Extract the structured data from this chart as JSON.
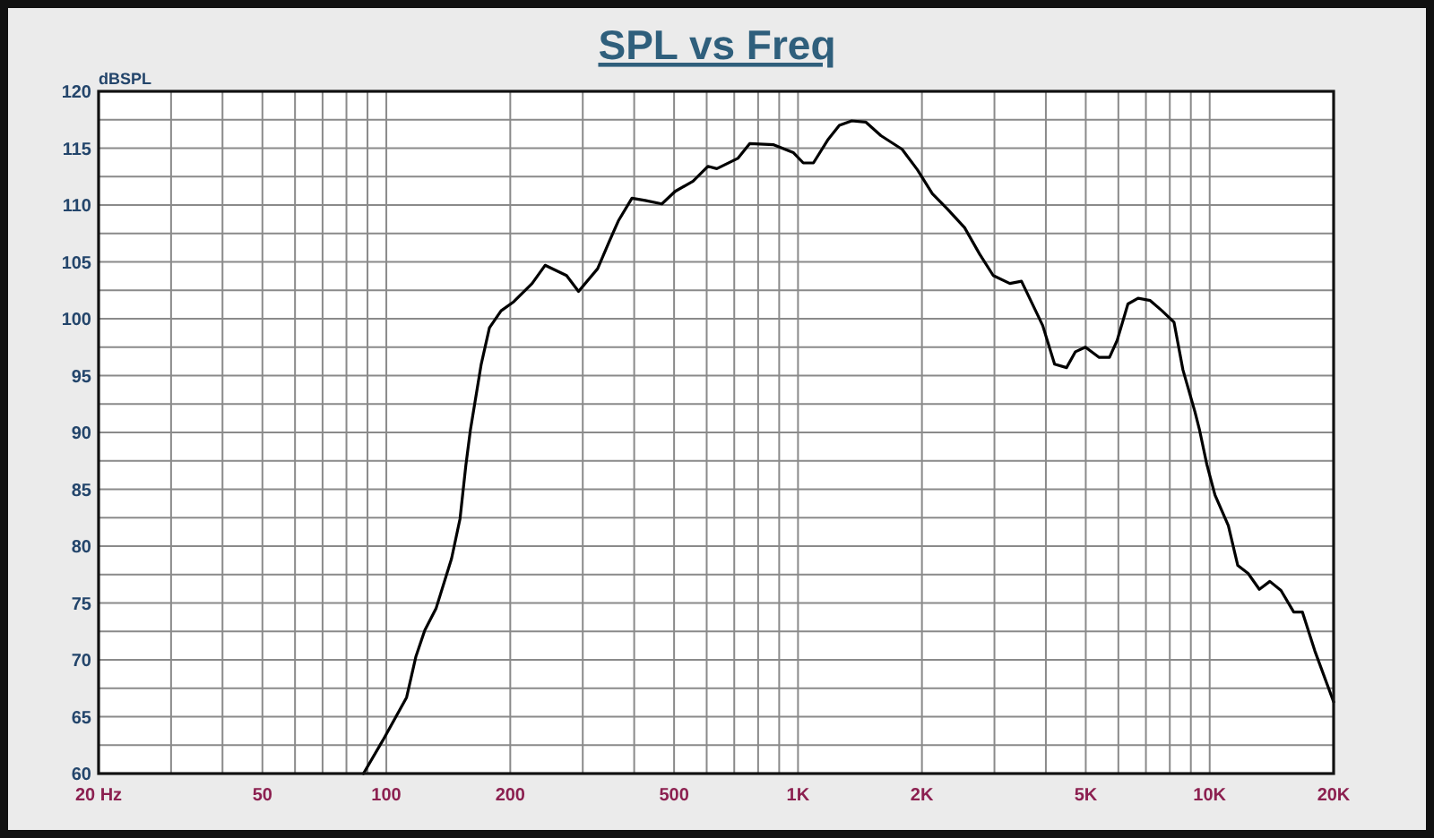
{
  "chart_data": {
    "type": "line",
    "title": "SPL vs Freq",
    "ylabel": "dBSPL",
    "x": [
      88,
      98,
      112,
      118,
      124,
      132,
      144,
      151,
      156,
      160,
      170,
      178,
      190,
      204,
      226,
      243,
      274,
      293,
      326,
      348,
      366,
      395,
      425,
      467,
      503,
      556,
      604,
      635,
      714,
      763,
      873,
      975,
      1030,
      1090,
      1180,
      1260,
      1350,
      1460,
      1590,
      1790,
      1950,
      2120,
      2300,
      2540,
      2760,
      2980,
      3270,
      3490,
      3930,
      4200,
      4490,
      4720,
      4990,
      5390,
      5710,
      5960,
      6330,
      6700,
      7170,
      7660,
      8190,
      8610,
      9210,
      9450,
      9840,
      10300,
      11100,
      11700,
      12400,
      13200,
      14000,
      14900,
      16000,
      16800,
      18000,
      20000
    ],
    "series": [
      {
        "color": "#000000",
        "values": [
          60.0,
          62.9,
          66.7,
          70.3,
          72.6,
          74.5,
          78.9,
          82.4,
          87.1,
          90.2,
          96.0,
          99.2,
          100.7,
          101.5,
          103.1,
          104.7,
          103.8,
          102.4,
          104.4,
          106.8,
          108.6,
          110.6,
          110.4,
          110.1,
          111.2,
          112.1,
          113.4,
          113.2,
          114.1,
          115.4,
          115.3,
          114.6,
          113.7,
          113.7,
          115.7,
          117.0,
          117.4,
          117.3,
          116.1,
          114.9,
          113.1,
          111.0,
          109.7,
          108.0,
          105.7,
          103.8,
          103.1,
          103.3,
          99.4,
          96.0,
          95.7,
          97.1,
          97.5,
          96.6,
          96.6,
          98.1,
          101.3,
          101.8,
          101.6,
          100.7,
          99.7,
          95.5,
          91.8,
          90.2,
          87.2,
          84.5,
          81.8,
          78.3,
          77.6,
          76.2,
          76.9,
          76.1,
          74.2,
          74.2,
          70.8,
          66.3
        ]
      }
    ],
    "xlim": [
      20,
      20000
    ],
    "ylim": [
      60,
      120
    ],
    "xticks": [
      {
        "value": 20,
        "label": "20 Hz"
      },
      {
        "value": 30,
        "label": null
      },
      {
        "value": 40,
        "label": null
      },
      {
        "value": 50,
        "label": "50"
      },
      {
        "value": 60,
        "label": null
      },
      {
        "value": 70,
        "label": null
      },
      {
        "value": 80,
        "label": null
      },
      {
        "value": 90,
        "label": null
      },
      {
        "value": 100,
        "label": "100"
      },
      {
        "value": 200,
        "label": "200"
      },
      {
        "value": 300,
        "label": null
      },
      {
        "value": 400,
        "label": null
      },
      {
        "value": 500,
        "label": "500"
      },
      {
        "value": 600,
        "label": null
      },
      {
        "value": 700,
        "label": null
      },
      {
        "value": 800,
        "label": null
      },
      {
        "value": 900,
        "label": null
      },
      {
        "value": 1000,
        "label": "1K"
      },
      {
        "value": 2000,
        "label": "2K"
      },
      {
        "value": 3000,
        "label": null
      },
      {
        "value": 4000,
        "label": null
      },
      {
        "value": 5000,
        "label": "5K"
      },
      {
        "value": 6000,
        "label": null
      },
      {
        "value": 7000,
        "label": null
      },
      {
        "value": 8000,
        "label": null
      },
      {
        "value": 9000,
        "label": null
      },
      {
        "value": 10000,
        "label": "10K"
      },
      {
        "value": 20000,
        "label": "20K"
      }
    ],
    "yticks": [
      60,
      {
        "value": 62.5,
        "label": null
      },
      65,
      {
        "value": 67.5,
        "label": null
      },
      70,
      {
        "value": 72.5,
        "label": null
      },
      75,
      {
        "value": 77.5,
        "label": null
      },
      80,
      {
        "value": 82.5,
        "label": null
      },
      85,
      {
        "value": 87.5,
        "label": null
      },
      90,
      {
        "value": 92.5,
        "label": null
      },
      95,
      {
        "value": 97.5,
        "label": null
      },
      100,
      {
        "value": 102.5,
        "label": null
      },
      105,
      {
        "value": 107.5,
        "label": null
      },
      110,
      {
        "value": 112.5,
        "label": null
      },
      115,
      {
        "value": 117.5,
        "label": null
      },
      120
    ],
    "log": "x",
    "grid": true
  }
}
